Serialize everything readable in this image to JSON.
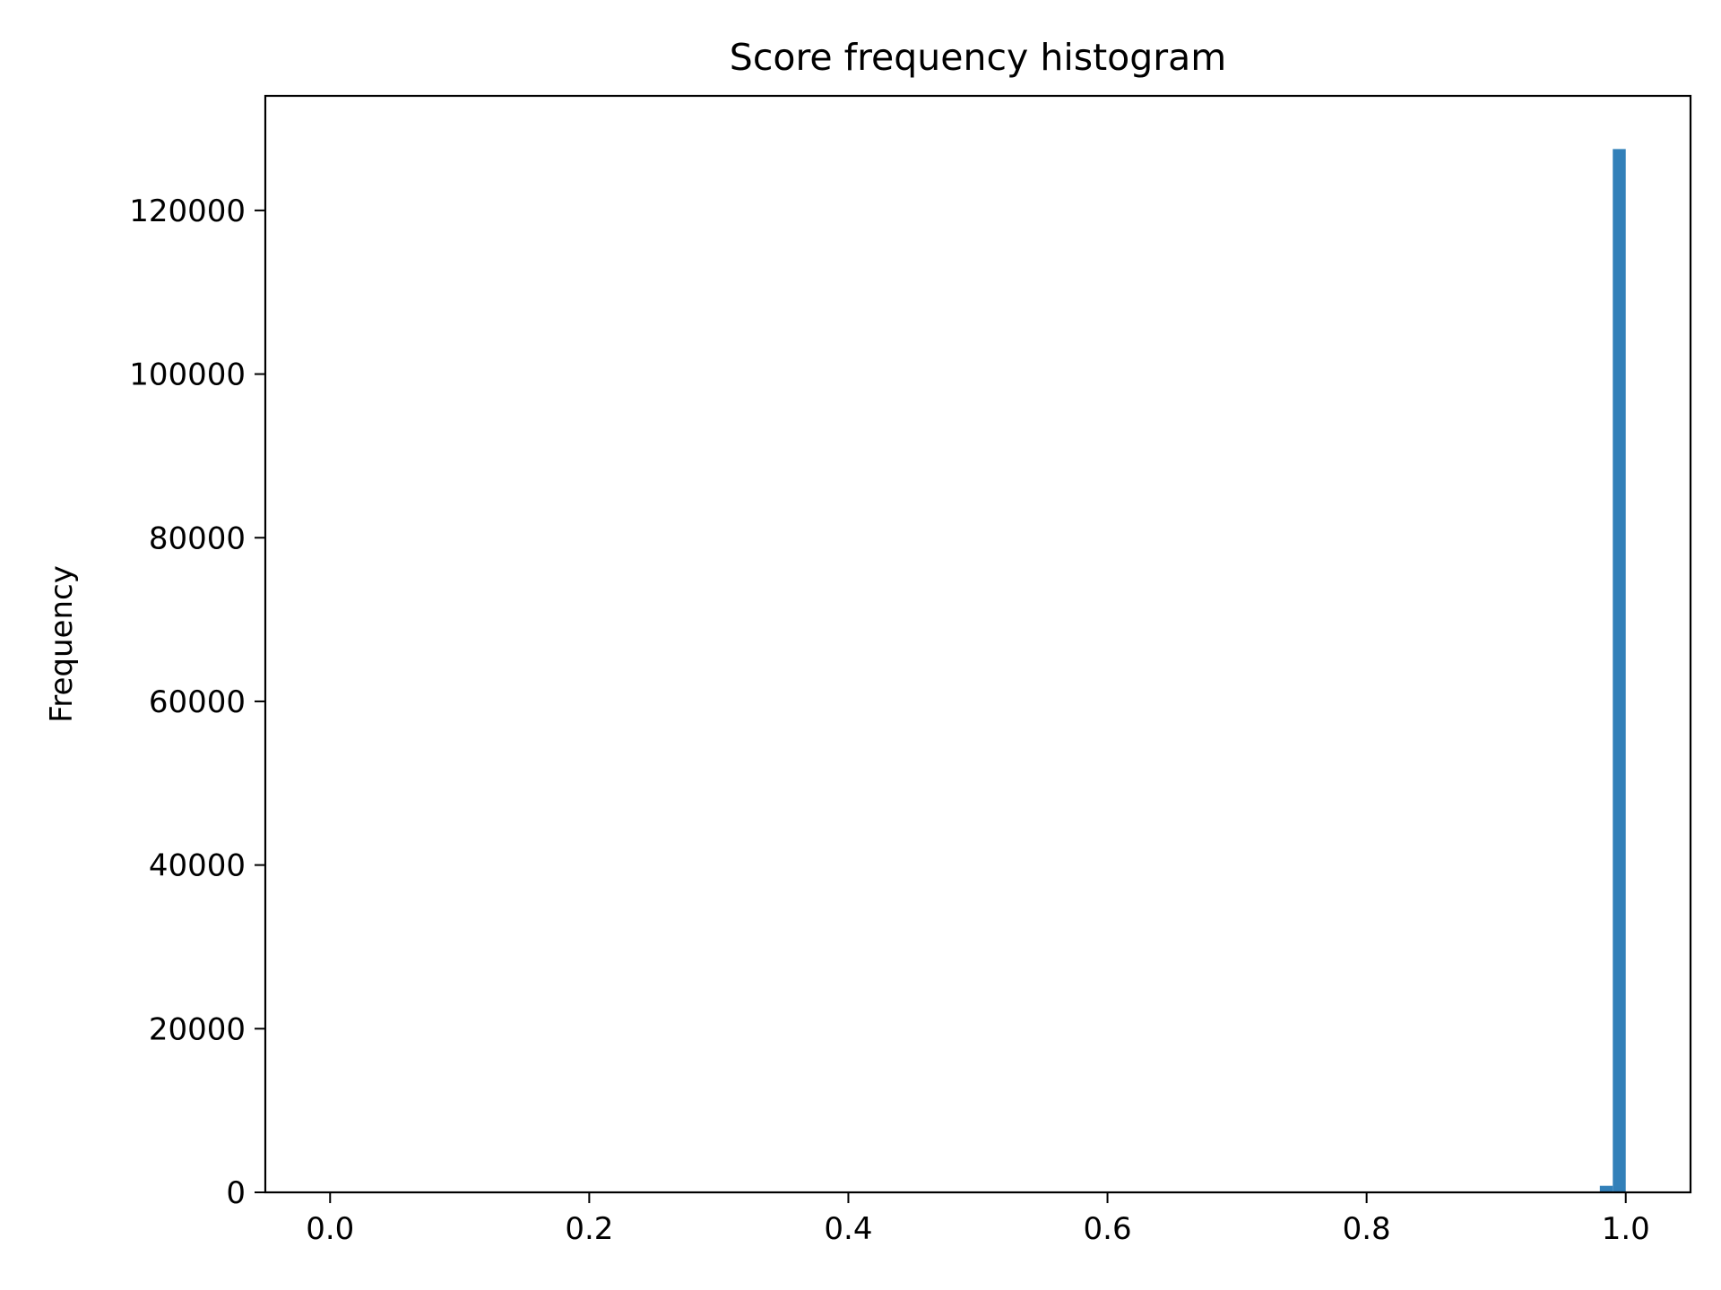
{
  "chart_data": {
    "type": "bar",
    "title": "Score frequency histogram",
    "xlabel": "",
    "ylabel": "Frequency",
    "xlim": [
      -0.05,
      1.05
    ],
    "ylim": [
      0,
      134000
    ],
    "x_ticks": [
      {
        "value": 0.0,
        "label": "0.0"
      },
      {
        "value": 0.2,
        "label": "0.2"
      },
      {
        "value": 0.4,
        "label": "0.4"
      },
      {
        "value": 0.6,
        "label": "0.6"
      },
      {
        "value": 0.8,
        "label": "0.8"
      },
      {
        "value": 1.0,
        "label": "1.0"
      }
    ],
    "y_ticks": [
      {
        "value": 0,
        "label": "0"
      },
      {
        "value": 20000,
        "label": "20000"
      },
      {
        "value": 40000,
        "label": "40000"
      },
      {
        "value": 60000,
        "label": "60000"
      },
      {
        "value": 80000,
        "label": "80000"
      },
      {
        "value": 100000,
        "label": "100000"
      },
      {
        "value": 120000,
        "label": "120000"
      }
    ],
    "bins": [
      {
        "start": 0.98,
        "end": 0.99,
        "count": 800
      },
      {
        "start": 0.99,
        "end": 1.0,
        "count": 127500
      }
    ],
    "grid": false,
    "legend": "none",
    "bar_color": "#3280b9"
  }
}
